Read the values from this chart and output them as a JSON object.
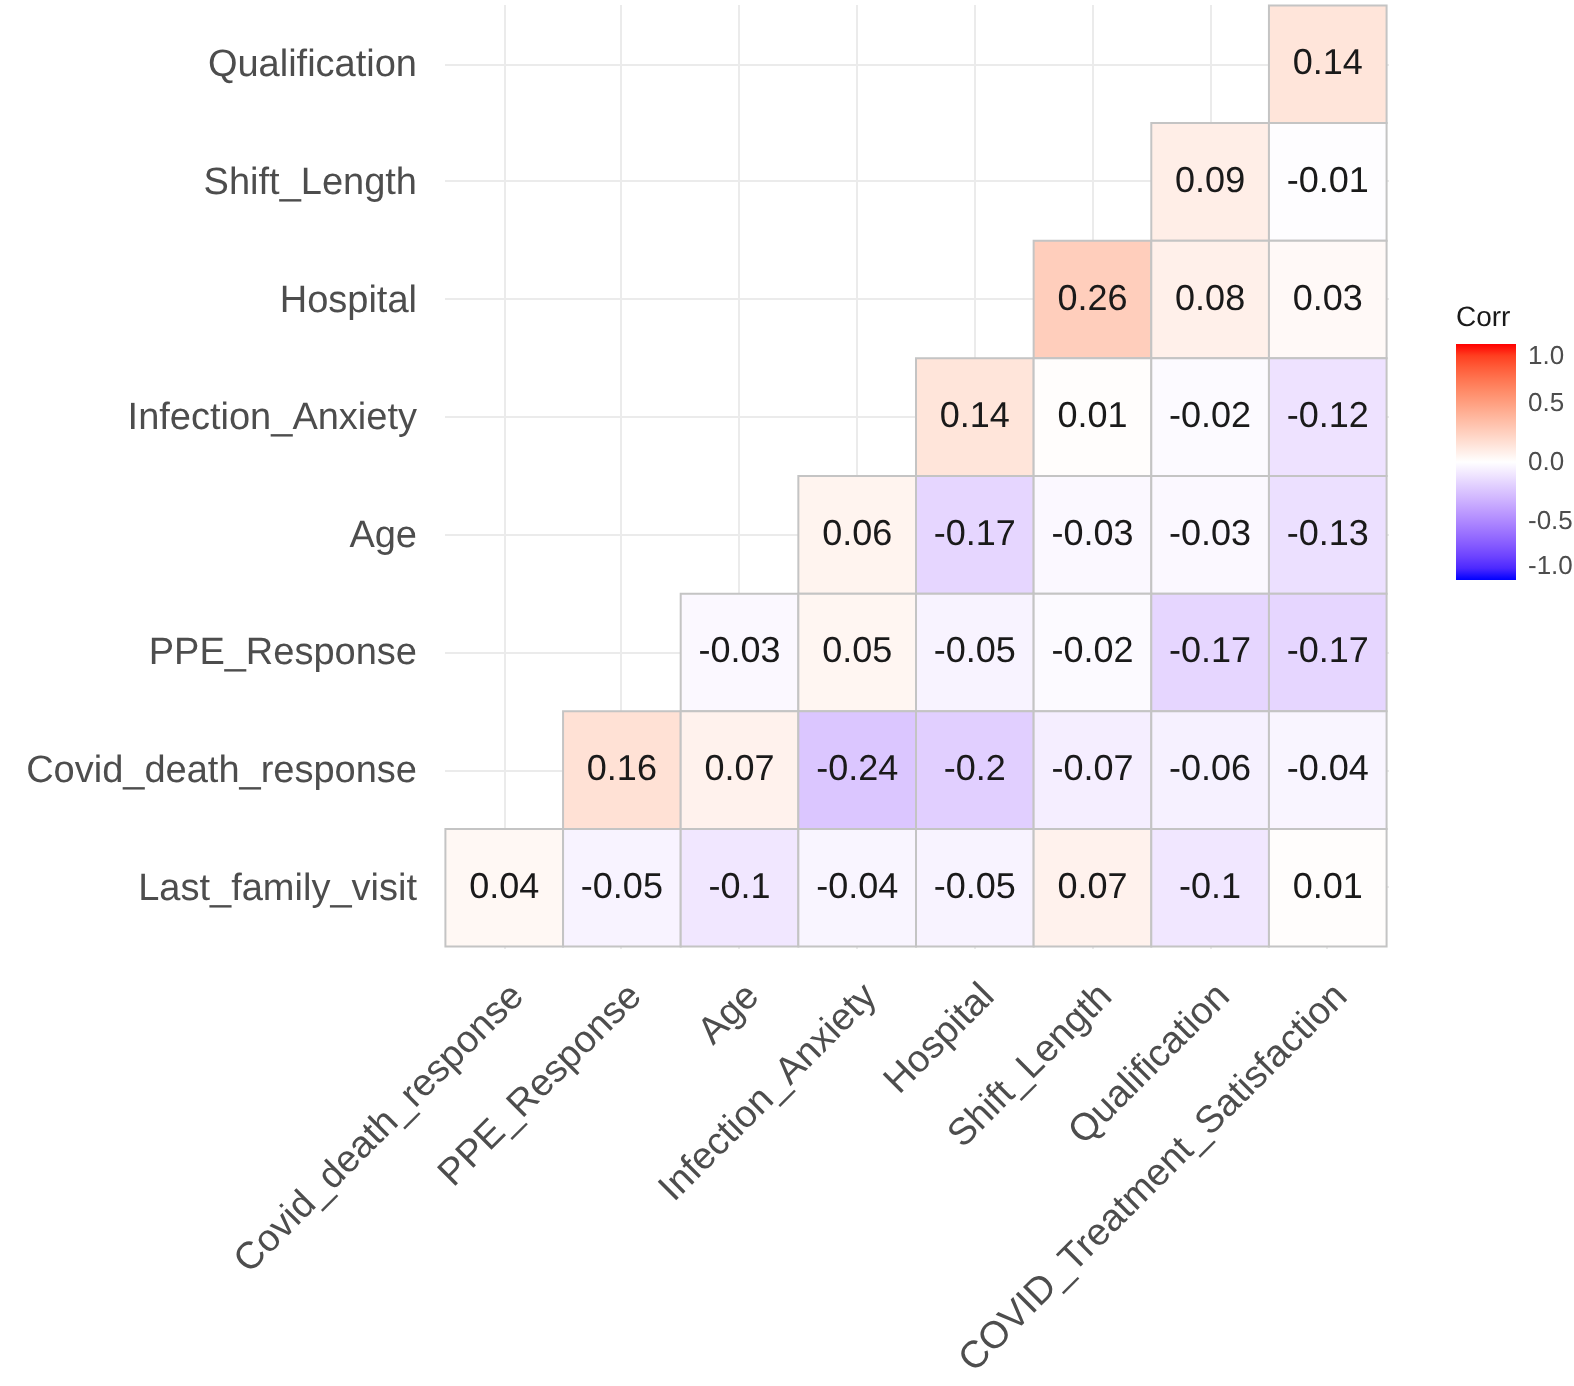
{
  "chart_data": {
    "type": "heatmap",
    "clabel": "Corr",
    "categories": [
      "Covid_death_response",
      "PPE_Response",
      "Age",
      "Infection_Anxiety",
      "Hospital",
      "Shift_Length",
      "Qualification",
      "COVID_Treatment_Satisfaction"
    ],
    "y_categories": [
      "Qualification",
      "Shift_Length",
      "Hospital",
      "Infection_Anxiety",
      "Age",
      "PPE_Response",
      "Covid_death_response",
      "Last_family_visit"
    ],
    "cells": [
      [
        null,
        null,
        null,
        null,
        null,
        null,
        null,
        0.14
      ],
      [
        null,
        null,
        null,
        null,
        null,
        null,
        0.09,
        -0.01
      ],
      [
        null,
        null,
        null,
        null,
        null,
        0.26,
        0.08,
        0.03
      ],
      [
        null,
        null,
        null,
        null,
        0.14,
        0.01,
        -0.02,
        -0.12
      ],
      [
        null,
        null,
        null,
        0.06,
        -0.17,
        -0.03,
        -0.03,
        -0.13
      ],
      [
        null,
        null,
        -0.03,
        0.05,
        -0.05,
        -0.02,
        -0.17,
        -0.17
      ],
      [
        null,
        0.16,
        0.07,
        -0.24,
        -0.2,
        -0.07,
        -0.06,
        -0.04
      ],
      [
        0.04,
        -0.05,
        -0.1,
        -0.04,
        -0.05,
        0.07,
        -0.1,
        0.01
      ]
    ],
    "clim": [
      -1,
      1
    ],
    "cticks": [
      {
        "value": -1,
        "label": "-1.0"
      },
      -0.5,
      {
        "value": 0,
        "label": "0.0"
      },
      0.5,
      {
        "value": 1,
        "label": "1.0"
      }
    ],
    "data_labels": true,
    "grid": true
  }
}
